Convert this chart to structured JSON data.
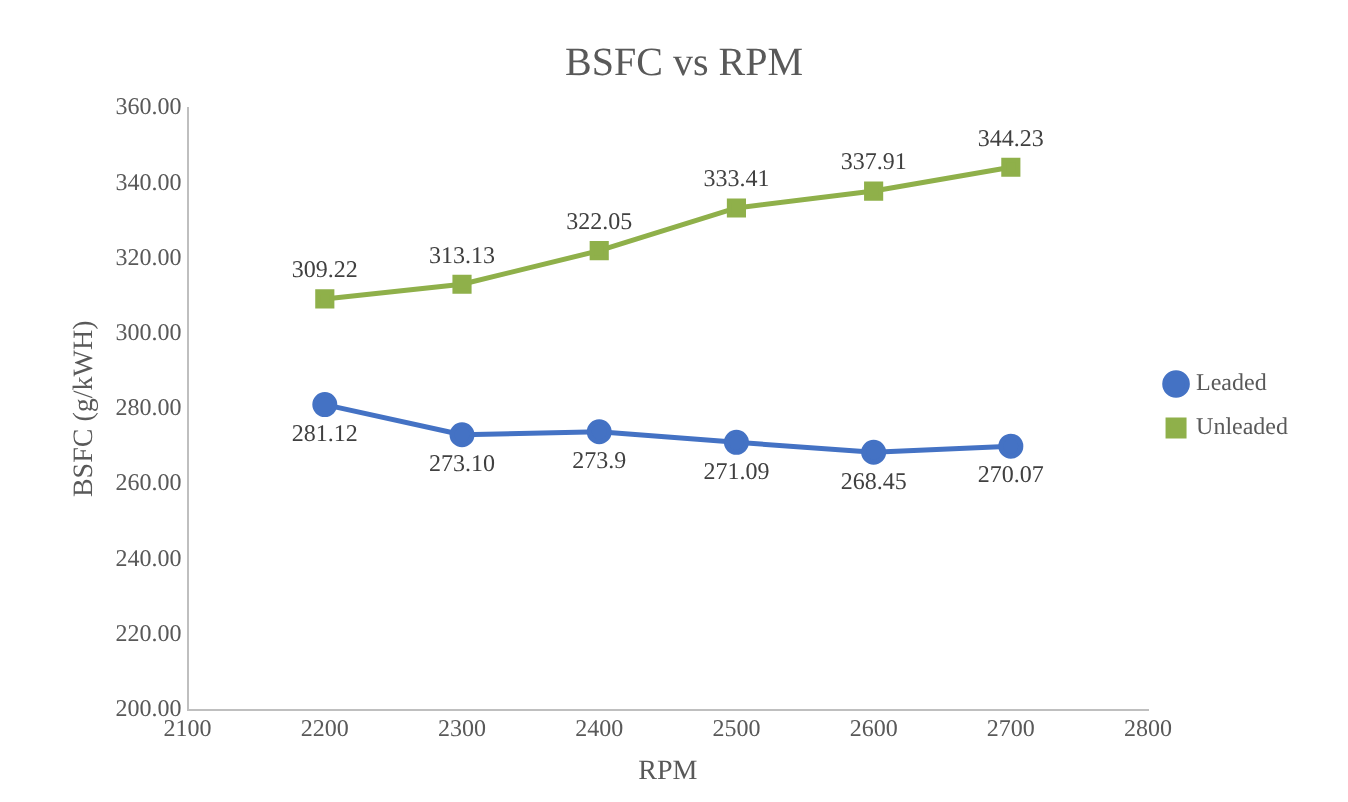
{
  "chart_data": {
    "type": "line",
    "title": "BSFC vs RPM",
    "xlabel": "RPM",
    "ylabel": "BSFC (g/kWH)",
    "x": [
      2200,
      2300,
      2400,
      2500,
      2600,
      2700
    ],
    "series": [
      {
        "name": "Leaded",
        "color": "#4472c4",
        "marker": "circle",
        "values": [
          281.12,
          273.1,
          273.9,
          271.09,
          268.45,
          270.07
        ],
        "value_labels": [
          "281.12",
          "273.10",
          "273.9",
          "271.09",
          "268.45",
          "270.07"
        ]
      },
      {
        "name": "Unleaded",
        "color": "#8fb04a",
        "marker": "square",
        "values": [
          309.22,
          313.13,
          322.05,
          333.41,
          337.91,
          344.23
        ],
        "value_labels": [
          "309.22",
          "313.13",
          "322.05",
          "333.41",
          "337.91",
          "344.23"
        ]
      }
    ],
    "xlim": [
      2100,
      2800
    ],
    "xticks": [
      2100,
      2200,
      2300,
      2400,
      2500,
      2600,
      2700,
      2800
    ],
    "ylim": [
      200,
      360
    ],
    "yticks": [
      {
        "value": 200,
        "label": "200.00"
      },
      {
        "value": 220,
        "label": "220.00"
      },
      {
        "value": 240,
        "label": "240.00"
      },
      {
        "value": 260,
        "label": "260.00"
      },
      {
        "value": 280,
        "label": "280.00"
      },
      {
        "value": 300,
        "label": "300.00"
      },
      {
        "value": 320,
        "label": "320.00"
      },
      {
        "value": 340,
        "label": "340.00"
      },
      {
        "value": 360,
        "label": "360.00"
      }
    ],
    "grid": false,
    "legend": "right"
  }
}
